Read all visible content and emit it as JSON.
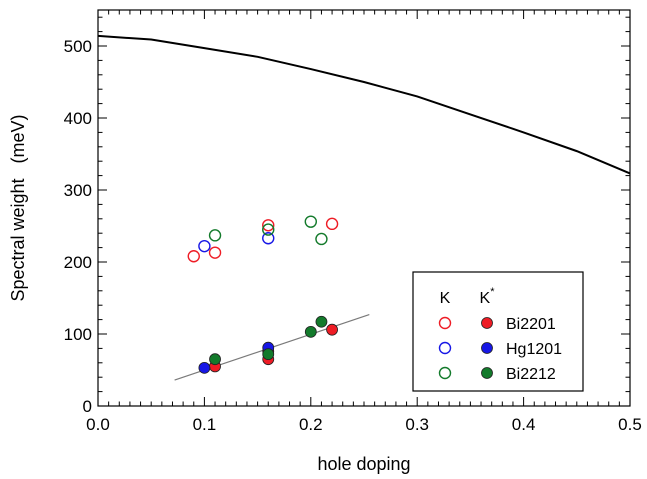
{
  "chart_data": {
    "type": "scatter",
    "xlabel": "hole doping",
    "ylabel": "Spectral weight   (meV)",
    "xlim": [
      0.0,
      0.5
    ],
    "ylim": [
      0,
      550
    ],
    "x_ticks": [
      "0.0",
      "0.1",
      "0.2",
      "0.3",
      "0.4",
      "0.5"
    ],
    "y_ticks": [
      "0",
      "100",
      "200",
      "300",
      "400",
      "500"
    ],
    "grid": false,
    "legend_position": "bottom-right",
    "legend": {
      "header_k": "K",
      "header_kstar": "K",
      "header_kstar_sup": "*",
      "entries": [
        "Bi2201",
        "Hg1201",
        "Bi2212"
      ]
    },
    "colors": {
      "Bi2201": "#ee1c25",
      "Hg1201": "#1717e6",
      "Bi2212": "#137a2b"
    },
    "curve": {
      "x": [
        0.0,
        0.05,
        0.1,
        0.15,
        0.2,
        0.25,
        0.3,
        0.35,
        0.4,
        0.45,
        0.5
      ],
      "y": [
        514,
        509,
        497,
        485,
        468,
        450,
        430,
        405,
        380,
        354,
        323
      ]
    },
    "fit_line": {
      "x": [
        0.072,
        0.255
      ],
      "y": [
        36,
        127
      ]
    },
    "series": [
      {
        "name": "Bi2201",
        "label": "K",
        "filled": false,
        "x": [
          0.09,
          0.11,
          0.16,
          0.22
        ],
        "y": [
          208,
          213,
          251,
          253
        ]
      },
      {
        "name": "Hg1201",
        "label": "K",
        "filled": false,
        "x": [
          0.1,
          0.16
        ],
        "y": [
          222,
          233
        ]
      },
      {
        "name": "Bi2212",
        "label": "K",
        "filled": false,
        "x": [
          0.11,
          0.16,
          0.2,
          0.21
        ],
        "y": [
          237,
          245,
          256,
          232
        ]
      },
      {
        "name": "Bi2201",
        "label": "K*",
        "filled": true,
        "x": [
          0.11,
          0.16,
          0.16,
          0.22
        ],
        "y": [
          55,
          65,
          76,
          106
        ]
      },
      {
        "name": "Hg1201",
        "label": "K*",
        "filled": true,
        "x": [
          0.1,
          0.16
        ],
        "y": [
          53,
          81
        ]
      },
      {
        "name": "Bi2212",
        "label": "K*",
        "filled": true,
        "x": [
          0.11,
          0.16,
          0.2,
          0.21
        ],
        "y": [
          65,
          72,
          103,
          117
        ]
      }
    ]
  }
}
